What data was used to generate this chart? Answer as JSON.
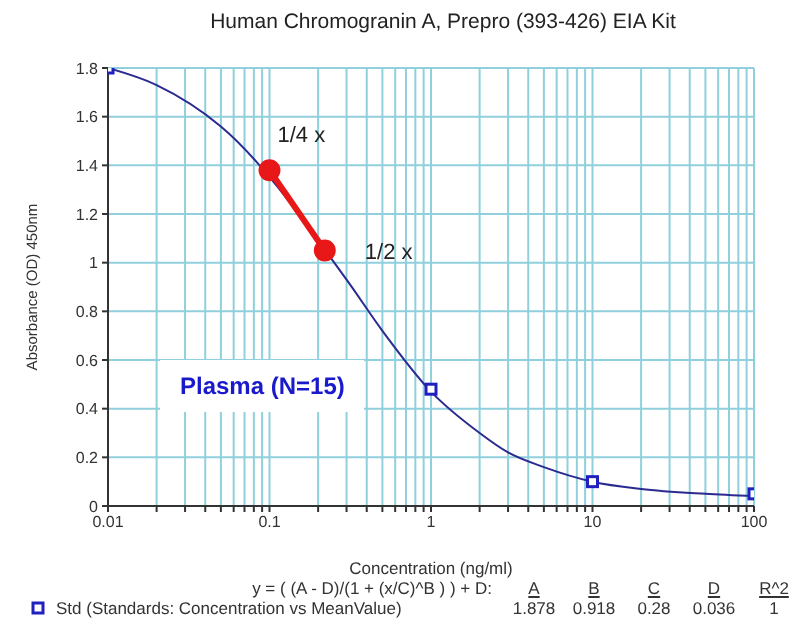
{
  "chart_data": {
    "type": "line",
    "title": "Human Chromogranin A, Prepro (393-426) EIA Kit",
    "xlabel": "Concentration (ng/ml)",
    "ylabel": "Absorbance (OD) 450nm",
    "log": "x",
    "grid": true,
    "legend": "bottom",
    "xlim": [
      0.01,
      100
    ],
    "ylim": [
      0,
      1.8
    ],
    "xticks": [
      0.01,
      {
        "value": 0.02,
        "label": null
      },
      {
        "value": 0.03,
        "label": null
      },
      {
        "value": 0.04,
        "label": null
      },
      {
        "value": 0.05,
        "label": null
      },
      {
        "value": 0.06,
        "label": null
      },
      {
        "value": 0.07,
        "label": null
      },
      {
        "value": 0.08,
        "label": null
      },
      {
        "value": 0.09,
        "label": null
      },
      0.1,
      {
        "value": 0.2,
        "label": null
      },
      {
        "value": 0.3,
        "label": null
      },
      {
        "value": 0.4,
        "label": null
      },
      {
        "value": 0.5,
        "label": null
      },
      {
        "value": 0.6,
        "label": null
      },
      {
        "value": 0.7,
        "label": null
      },
      {
        "value": 0.8,
        "label": null
      },
      {
        "value": 0.9,
        "label": null
      },
      1,
      {
        "value": 2,
        "label": null
      },
      {
        "value": 3,
        "label": null
      },
      {
        "value": 4,
        "label": null
      },
      {
        "value": 5,
        "label": null
      },
      {
        "value": 6,
        "label": null
      },
      {
        "value": 7,
        "label": null
      },
      {
        "value": 8,
        "label": null
      },
      {
        "value": 9,
        "label": null
      },
      10,
      {
        "value": 20,
        "label": null
      },
      {
        "value": 30,
        "label": null
      },
      {
        "value": 40,
        "label": null
      },
      {
        "value": 50,
        "label": null
      },
      {
        "value": 60,
        "label": null
      },
      {
        "value": 70,
        "label": null
      },
      {
        "value": 80,
        "label": null
      },
      {
        "value": 90,
        "label": null
      },
      100
    ],
    "yticks": [
      0,
      0.2,
      0.4,
      0.6,
      0.8,
      1,
      1.2,
      1.4,
      1.6,
      1.8
    ],
    "series": [
      {
        "type": "line",
        "color": "#2a2a90",
        "marker": "none",
        "x": [
          0.01,
          0.02,
          0.05,
          0.1,
          0.2,
          0.3,
          0.5,
          1,
          2,
          3,
          5,
          10,
          20,
          50,
          100
        ],
        "values": [
          1.8,
          1.73,
          1.56,
          null,
          null,
          0.93,
          0.72,
          0.47,
          0.3,
          0.22,
          0.16,
          0.1,
          0.07,
          0.05,
          0.04
        ]
      },
      {
        "type": "scatter",
        "name": "Std (Standards: Concentration vs MeanValue)",
        "color": "#2020c0",
        "marker": "square",
        "x": [
          0.01,
          1,
          10,
          100
        ],
        "values": [
          1.8,
          0.48,
          0.1,
          0.05
        ]
      },
      {
        "type": "line",
        "color": "#e81818",
        "marker": "circle",
        "x": [
          0.1,
          0.22
        ],
        "values": [
          1.38,
          1.05
        ]
      }
    ],
    "annotations": [
      {
        "text": "1/4 x",
        "x": 0.1,
        "y": 1.38
      },
      {
        "text": "1/2 x",
        "x": 0.22,
        "y": 1.05
      },
      "Plasma (N=15)",
      "y = ( (A - D)/(1 + (x/C)^B ) ) + D:",
      "A",
      "B",
      "C",
      "D",
      "R^2",
      "1.878",
      "0.918",
      "0.28",
      "0.036",
      "1"
    ]
  }
}
